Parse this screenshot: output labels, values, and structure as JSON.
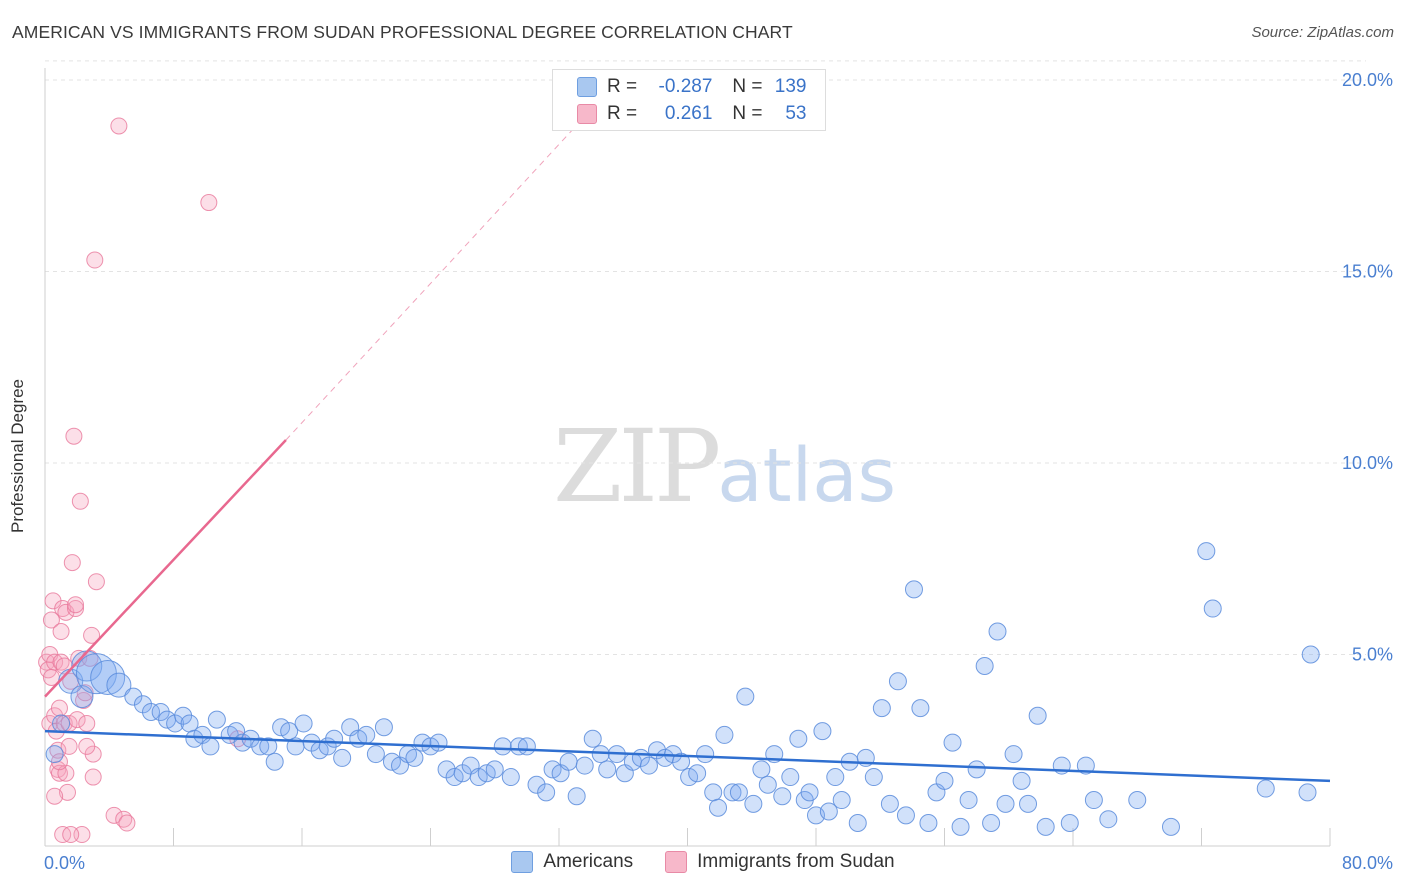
{
  "title": "AMERICAN VS IMMIGRANTS FROM SUDAN PROFESSIONAL DEGREE CORRELATION CHART",
  "source": "Source: ZipAtlas.com",
  "watermark": {
    "zip": "ZIP",
    "atlas": "atlas"
  },
  "legend": {
    "r_label": "R =",
    "n_label": "N =",
    "americans": {
      "r": "-0.287",
      "n": "139",
      "color": "#a9c8f0",
      "border": "#6f9fe0"
    },
    "sudan": {
      "r": "0.261",
      "n": "53",
      "color": "#f7b8ca",
      "border": "#e88aa6"
    }
  },
  "bottom_legend": {
    "americans": "Americans",
    "sudan": "Immigrants from Sudan"
  },
  "chart_data": {
    "type": "scatter",
    "title": "AMERICAN VS IMMIGRANTS FROM SUDAN PROFESSIONAL DEGREE CORRELATION CHART",
    "xlabel": "",
    "ylabel": "Professional Degree",
    "xlim": [
      0,
      80
    ],
    "ylim": [
      0,
      20.5
    ],
    "x_tick_labels": [
      "0.0%",
      "80.0%"
    ],
    "y_ticks": [
      5,
      10,
      15,
      20
    ],
    "y_tick_labels": [
      "5.0%",
      "10.0%",
      "15.0%",
      "20.0%"
    ],
    "grid": true,
    "series": [
      {
        "name": "Americans",
        "color": "#7baaf0",
        "trend": {
          "x0": 0,
          "y0": 3.0,
          "x1": 80,
          "y1": 1.7
        },
        "points": [
          [
            0.6,
            2.4
          ],
          [
            1.0,
            3.2
          ],
          [
            1.6,
            4.3
          ],
          [
            2.3,
            3.9
          ],
          [
            2.6,
            4.7
          ],
          [
            3.2,
            4.5
          ],
          [
            3.9,
            4.4
          ],
          [
            4.6,
            4.2
          ],
          [
            5.5,
            3.9
          ],
          [
            6.1,
            3.7
          ],
          [
            6.6,
            3.5
          ],
          [
            7.2,
            3.5
          ],
          [
            7.6,
            3.3
          ],
          [
            8.1,
            3.2
          ],
          [
            8.6,
            3.4
          ],
          [
            9.0,
            3.2
          ],
          [
            9.3,
            2.8
          ],
          [
            9.8,
            2.9
          ],
          [
            10.3,
            2.6
          ],
          [
            10.7,
            3.3
          ],
          [
            11.5,
            2.9
          ],
          [
            11.9,
            3.0
          ],
          [
            12.3,
            2.7
          ],
          [
            12.8,
            2.8
          ],
          [
            13.4,
            2.6
          ],
          [
            13.9,
            2.6
          ],
          [
            14.3,
            2.2
          ],
          [
            14.7,
            3.1
          ],
          [
            15.2,
            3.0
          ],
          [
            15.6,
            2.6
          ],
          [
            16.1,
            3.2
          ],
          [
            16.6,
            2.7
          ],
          [
            17.1,
            2.5
          ],
          [
            17.6,
            2.6
          ],
          [
            18.0,
            2.8
          ],
          [
            18.5,
            2.3
          ],
          [
            19.0,
            3.1
          ],
          [
            19.5,
            2.8
          ],
          [
            20.0,
            2.9
          ],
          [
            20.6,
            2.4
          ],
          [
            21.1,
            3.1
          ],
          [
            21.6,
            2.2
          ],
          [
            22.1,
            2.1
          ],
          [
            22.6,
            2.4
          ],
          [
            23.0,
            2.3
          ],
          [
            23.5,
            2.7
          ],
          [
            24.0,
            2.6
          ],
          [
            24.5,
            2.7
          ],
          [
            25.0,
            2.0
          ],
          [
            25.5,
            1.8
          ],
          [
            26.0,
            1.9
          ],
          [
            26.5,
            2.1
          ],
          [
            27.0,
            1.8
          ],
          [
            27.5,
            1.9
          ],
          [
            28.0,
            2.0
          ],
          [
            28.5,
            2.6
          ],
          [
            29.0,
            1.8
          ],
          [
            29.5,
            2.6
          ],
          [
            30.0,
            2.6
          ],
          [
            30.6,
            1.6
          ],
          [
            31.2,
            1.4
          ],
          [
            31.6,
            2.0
          ],
          [
            32.1,
            1.9
          ],
          [
            32.6,
            2.2
          ],
          [
            33.1,
            1.3
          ],
          [
            33.6,
            2.1
          ],
          [
            34.1,
            2.8
          ],
          [
            34.6,
            2.4
          ],
          [
            35.0,
            2.0
          ],
          [
            35.6,
            2.4
          ],
          [
            36.1,
            1.9
          ],
          [
            36.6,
            2.2
          ],
          [
            37.1,
            2.3
          ],
          [
            37.6,
            2.1
          ],
          [
            38.1,
            2.5
          ],
          [
            38.6,
            2.3
          ],
          [
            39.1,
            2.4
          ],
          [
            39.6,
            2.2
          ],
          [
            40.1,
            1.8
          ],
          [
            40.6,
            1.9
          ],
          [
            41.1,
            2.4
          ],
          [
            41.6,
            1.4
          ],
          [
            41.9,
            1.0
          ],
          [
            42.3,
            2.9
          ],
          [
            42.8,
            1.4
          ],
          [
            43.2,
            1.4
          ],
          [
            43.6,
            3.9
          ],
          [
            44.1,
            1.1
          ],
          [
            44.6,
            2.0
          ],
          [
            45.0,
            1.6
          ],
          [
            45.4,
            2.4
          ],
          [
            45.9,
            1.3
          ],
          [
            46.4,
            1.8
          ],
          [
            46.9,
            2.8
          ],
          [
            47.3,
            1.2
          ],
          [
            47.6,
            1.4
          ],
          [
            48.0,
            0.8
          ],
          [
            48.4,
            3.0
          ],
          [
            48.8,
            0.9
          ],
          [
            49.2,
            1.8
          ],
          [
            49.6,
            1.2
          ],
          [
            50.1,
            2.2
          ],
          [
            50.6,
            0.6
          ],
          [
            51.1,
            2.3
          ],
          [
            51.6,
            1.8
          ],
          [
            52.1,
            3.6
          ],
          [
            52.6,
            1.1
          ],
          [
            53.1,
            4.3
          ],
          [
            53.6,
            0.8
          ],
          [
            54.1,
            6.7
          ],
          [
            54.5,
            3.6
          ],
          [
            55.0,
            0.6
          ],
          [
            55.5,
            1.4
          ],
          [
            56.0,
            1.7
          ],
          [
            56.5,
            2.7
          ],
          [
            57.0,
            0.5
          ],
          [
            57.5,
            1.2
          ],
          [
            58.0,
            2.0
          ],
          [
            58.5,
            4.7
          ],
          [
            58.9,
            0.6
          ],
          [
            59.3,
            5.6
          ],
          [
            59.8,
            1.1
          ],
          [
            60.3,
            2.4
          ],
          [
            60.8,
            1.7
          ],
          [
            61.2,
            1.1
          ],
          [
            61.8,
            3.4
          ],
          [
            62.3,
            0.5
          ],
          [
            63.3,
            2.1
          ],
          [
            63.8,
            0.6
          ],
          [
            64.8,
            2.1
          ],
          [
            65.3,
            1.2
          ],
          [
            66.2,
            0.7
          ],
          [
            68.0,
            1.2
          ],
          [
            70.1,
            0.5
          ],
          [
            72.3,
            7.7
          ],
          [
            72.7,
            6.2
          ],
          [
            76.0,
            1.5
          ],
          [
            78.6,
            1.4
          ],
          [
            78.8,
            5.0
          ]
        ]
      },
      {
        "name": "Immigrants from Sudan",
        "color": "#f5a3bc",
        "trend": {
          "x0": 0,
          "y0": 3.9,
          "x1": 15,
          "y1": 10.6
        },
        "trend_extension": {
          "x0": 15,
          "y0": 10.6,
          "x1": 33.5,
          "y1": 19.0
        },
        "points": [
          [
            0.1,
            4.8
          ],
          [
            0.2,
            4.6
          ],
          [
            0.3,
            5.0
          ],
          [
            0.3,
            3.2
          ],
          [
            0.4,
            5.9
          ],
          [
            0.5,
            6.4
          ],
          [
            0.6,
            4.8
          ],
          [
            0.6,
            3.4
          ],
          [
            0.7,
            3.0
          ],
          [
            0.8,
            2.5
          ],
          [
            0.8,
            2.0
          ],
          [
            0.9,
            1.9
          ],
          [
            1.0,
            5.6
          ],
          [
            1.0,
            4.8
          ],
          [
            1.1,
            6.2
          ],
          [
            1.2,
            3.2
          ],
          [
            1.3,
            6.1
          ],
          [
            1.3,
            1.9
          ],
          [
            1.4,
            1.4
          ],
          [
            1.5,
            3.2
          ],
          [
            1.5,
            2.6
          ],
          [
            1.6,
            4.3
          ],
          [
            1.7,
            7.4
          ],
          [
            1.8,
            10.7
          ],
          [
            1.9,
            6.2
          ],
          [
            1.9,
            6.3
          ],
          [
            2.0,
            3.3
          ],
          [
            2.1,
            4.9
          ],
          [
            2.2,
            9.0
          ],
          [
            2.3,
            0.3
          ],
          [
            2.4,
            3.8
          ],
          [
            2.5,
            4.0
          ],
          [
            2.6,
            3.2
          ],
          [
            2.8,
            4.9
          ],
          [
            2.9,
            5.5
          ],
          [
            3.0,
            2.4
          ],
          [
            3.0,
            1.8
          ],
          [
            3.1,
            15.3
          ],
          [
            3.2,
            6.9
          ],
          [
            4.3,
            0.8
          ],
          [
            4.6,
            18.8
          ],
          [
            4.9,
            0.7
          ],
          [
            5.1,
            0.6
          ],
          [
            10.2,
            16.8
          ],
          [
            12.0,
            2.8
          ],
          [
            0.6,
            1.3
          ],
          [
            1.1,
            0.3
          ],
          [
            0.9,
            3.6
          ],
          [
            1.2,
            4.7
          ],
          [
            0.4,
            4.4
          ],
          [
            2.6,
            2.6
          ],
          [
            1.6,
            0.3
          ],
          [
            0.9,
            2.2
          ]
        ]
      }
    ]
  }
}
